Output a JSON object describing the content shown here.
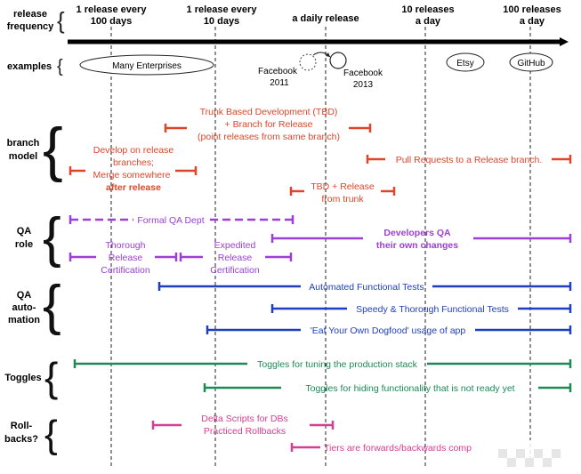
{
  "header": {
    "frequency_label": [
      "release",
      "frequency"
    ],
    "columns": [
      [
        "1 release every",
        "100 days"
      ],
      [
        "1 release every",
        "10 days"
      ],
      [
        "a daily release"
      ],
      [
        "10 releases",
        "a day"
      ],
      [
        "100 releases",
        "a day"
      ]
    ]
  },
  "examples": {
    "label": "examples",
    "many_enterprises": "Many Enterprises",
    "facebook_2011": [
      "Facebook",
      "2011"
    ],
    "facebook_2013": [
      "Facebook",
      "2013"
    ],
    "etsy": "Etsy",
    "github": "GitHub"
  },
  "rows": {
    "branch_model": [
      "branch",
      "model"
    ],
    "qa_role": [
      "QA",
      "role"
    ],
    "qa_automation": [
      "QA",
      "auto-",
      "mation"
    ],
    "toggles": [
      "Toggles"
    ],
    "rollbacks": [
      "Roll-",
      "backs?"
    ]
  },
  "bars": {
    "tbd": [
      "Trunk Based Development (TBD)",
      "+ Branch for Release",
      "(point releases from same branch)"
    ],
    "develop_on_release": [
      "Develop on release",
      "branches;",
      "Merge somewhere",
      "after release"
    ],
    "pull_requests": "Pull Requests to a Release branch.",
    "tbd_release": [
      "TBD + Release",
      "from trunk"
    ],
    "formal_qa": "Formal QA Dept",
    "developers_qa": [
      "Developers QA",
      "their own changes"
    ],
    "thorough_cert": [
      "Thorough",
      "Release",
      "Certification"
    ],
    "expedited_cert": [
      "Expedited",
      "Release",
      "Certification"
    ],
    "automated_tests": "Automated Functional Tests",
    "speedy_tests": "Speedy & Thorough Functional Tests",
    "dogfood": "'Eat Your Own Dogfood' usage of app",
    "toggles_production": "Toggles for tuning the production stack",
    "toggles_hiding": "Toggles for hiding functionality that is not ready yet",
    "delta_scripts": [
      "Delta Scripts for DBs",
      "Practiced Rollbacks"
    ],
    "tiers": "Tiers are forwards/backwards comp"
  },
  "colors": {
    "branch": "#e0452a",
    "qa_role": "#9b3fd6",
    "automation": "#1f3fbf",
    "toggles": "#1c8a55",
    "rollbacks": "#d43f93"
  }
}
